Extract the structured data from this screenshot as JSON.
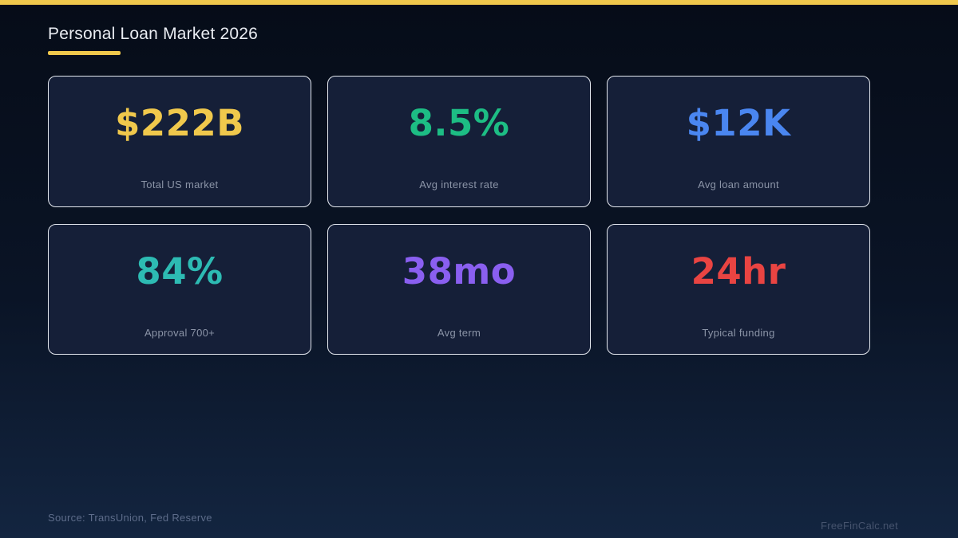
{
  "page": {
    "title": "Personal Loan Market 2026",
    "source": "Source: TransUnion, Fed Reserve",
    "watermark": "FreeFinCalc.net"
  },
  "colors": {
    "accent_yellow": "#f0c84c",
    "background_top": "#060c18",
    "background_bottom": "#132540",
    "card_background": "#151f38",
    "card_border": "#e4e8ef",
    "label_gray": "#8b94a7"
  },
  "stats": [
    {
      "value": "$222B",
      "label": "Total US market",
      "color": "#f0c84c"
    },
    {
      "value": "8.5%",
      "label": "Avg interest rate",
      "color": "#1dbd84"
    },
    {
      "value": "$12K",
      "label": "Avg loan amount",
      "color": "#4a86f0"
    },
    {
      "value": "84%",
      "label": "Approval 700+",
      "color": "#2dbbb3"
    },
    {
      "value": "38mo",
      "label": "Avg term",
      "color": "#8a5ff0"
    },
    {
      "value": "24hr",
      "label": "Typical funding",
      "color": "#e94442"
    }
  ]
}
